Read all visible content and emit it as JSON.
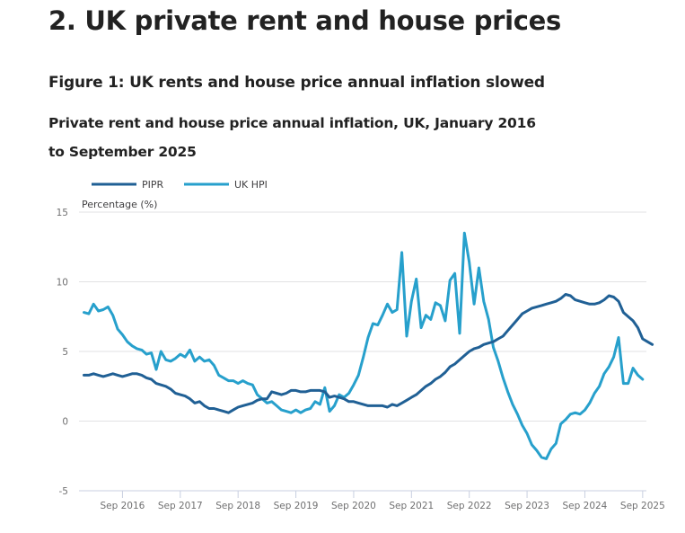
{
  "page": {
    "section_heading": "2.  UK private rent and house prices",
    "figure_title": "Figure 1: UK rents and house price annual inflation slowed",
    "figure_subtitle": "Private rent and house price annual inflation, UK, January 2016 to September 2025"
  },
  "chart_data": {
    "type": "line",
    "title": "Private rent and house price annual inflation, UK, January 2016 to September 2025",
    "xlabel": "",
    "ylabel": "Percentage (%)",
    "ylim": [
      -5,
      15
    ],
    "yticks": [
      15,
      10,
      5,
      0,
      -5
    ],
    "x_start": "Jan 2016",
    "x_end": "Sep 2025",
    "x_frequency": "monthly",
    "xtick_labels": [
      "Sep 2016",
      "Sep 2017",
      "Sep 2018",
      "Sep 2019",
      "Sep 2020",
      "Sep 2021",
      "Sep 2022",
      "Sep 2023",
      "Sep 2024",
      "Sep 2025"
    ],
    "xtick_month_index": [
      8,
      20,
      32,
      44,
      56,
      68,
      80,
      92,
      104,
      116
    ],
    "grid": true,
    "legend_position": "top-left",
    "series": [
      {
        "name": "PIPR",
        "color": "#206095",
        "values": [
          3.3,
          3.3,
          3.4,
          3.3,
          3.2,
          3.3,
          3.4,
          3.3,
          3.2,
          3.3,
          3.4,
          3.4,
          3.3,
          3.1,
          3.0,
          2.7,
          2.6,
          2.5,
          2.3,
          2.0,
          1.9,
          1.8,
          1.6,
          1.3,
          1.4,
          1.1,
          0.9,
          0.9,
          0.8,
          0.7,
          0.6,
          0.8,
          1.0,
          1.1,
          1.2,
          1.3,
          1.5,
          1.6,
          1.6,
          2.1,
          2.0,
          1.9,
          2.0,
          2.2,
          2.2,
          2.1,
          2.1,
          2.2,
          2.2,
          2.2,
          2.1,
          1.7,
          1.8,
          1.7,
          1.6,
          1.4,
          1.4,
          1.3,
          1.2,
          1.1,
          1.1,
          1.1,
          1.1,
          1.0,
          1.2,
          1.1,
          1.3,
          1.5,
          1.7,
          1.9,
          2.2,
          2.5,
          2.7,
          3.0,
          3.2,
          3.5,
          3.9,
          4.1,
          4.4,
          4.7,
          5.0,
          5.2,
          5.3,
          5.5,
          5.6,
          5.7,
          5.9,
          6.1,
          6.5,
          6.9,
          7.3,
          7.7,
          7.9,
          8.1,
          8.2,
          8.3,
          8.4,
          8.5,
          8.6,
          8.8,
          9.1,
          9.0,
          8.7,
          8.6,
          8.5,
          8.4,
          8.4,
          8.5,
          8.7,
          9.0,
          8.9,
          8.6,
          7.8,
          7.5,
          7.2,
          6.7,
          5.9,
          5.7,
          5.5
        ],
        "end_note": "values read from chart, approximate"
      },
      {
        "name": "UK HPI",
        "color": "#27a0cc",
        "values": [
          7.8,
          7.7,
          8.4,
          7.9,
          8.0,
          8.2,
          7.6,
          6.6,
          6.2,
          5.7,
          5.4,
          5.2,
          5.1,
          4.8,
          4.9,
          3.7,
          5.0,
          4.4,
          4.3,
          4.5,
          4.8,
          4.6,
          5.1,
          4.3,
          4.6,
          4.3,
          4.4,
          4.0,
          3.3,
          3.1,
          2.9,
          2.9,
          2.7,
          2.9,
          2.7,
          2.6,
          1.9,
          1.6,
          1.3,
          1.4,
          1.1,
          0.8,
          0.7,
          0.6,
          0.8,
          0.6,
          0.8,
          0.9,
          1.4,
          1.2,
          2.4,
          0.7,
          1.1,
          1.9,
          1.7,
          2.0,
          2.6,
          3.3,
          4.6,
          6.0,
          7.0,
          6.9,
          7.6,
          8.4,
          7.8,
          8.0,
          12.1,
          6.1,
          8.6,
          10.2,
          6.7,
          7.6,
          7.3,
          8.5,
          8.3,
          7.2,
          10.1,
          10.6,
          6.3,
          13.5,
          11.4,
          8.4,
          11.0,
          8.6,
          7.3,
          5.3,
          4.3,
          3.1,
          2.1,
          1.2,
          0.5,
          -0.3,
          -0.9,
          -1.7,
          -2.1,
          -2.6,
          -2.7,
          -2.0,
          -1.6,
          -0.2,
          0.1,
          0.5,
          0.6,
          0.5,
          0.8,
          1.3,
          2.0,
          2.5,
          3.4,
          3.9,
          4.6,
          6.0,
          2.7,
          2.7,
          3.8,
          3.3,
          3.0
        ]
      }
    ]
  }
}
